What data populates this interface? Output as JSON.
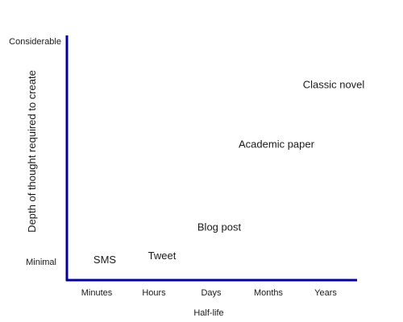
{
  "chart_data": {
    "type": "scatter",
    "title": "",
    "xlabel": "Half-life",
    "ylabel": "Depth of thought required to create",
    "x_categories": [
      "Minutes",
      "Hours",
      "Days",
      "Months",
      "Years"
    ],
    "y_tick_labels": {
      "min": "Minimal",
      "max": "Considerable"
    },
    "ylim": [
      0,
      1
    ],
    "axis_color": "#000099",
    "points": [
      {
        "label": "SMS",
        "x": "Minutes",
        "y": 0.0
      },
      {
        "label": "Tweet",
        "x": "Hours",
        "y": 0.02
      },
      {
        "label": "Blog post",
        "x": "Days",
        "y": 0.17
      },
      {
        "label": "Academic paper",
        "x": "Months",
        "y": 0.6
      },
      {
        "label": "Classic novel",
        "x": "Years",
        "y": 0.91
      }
    ]
  }
}
